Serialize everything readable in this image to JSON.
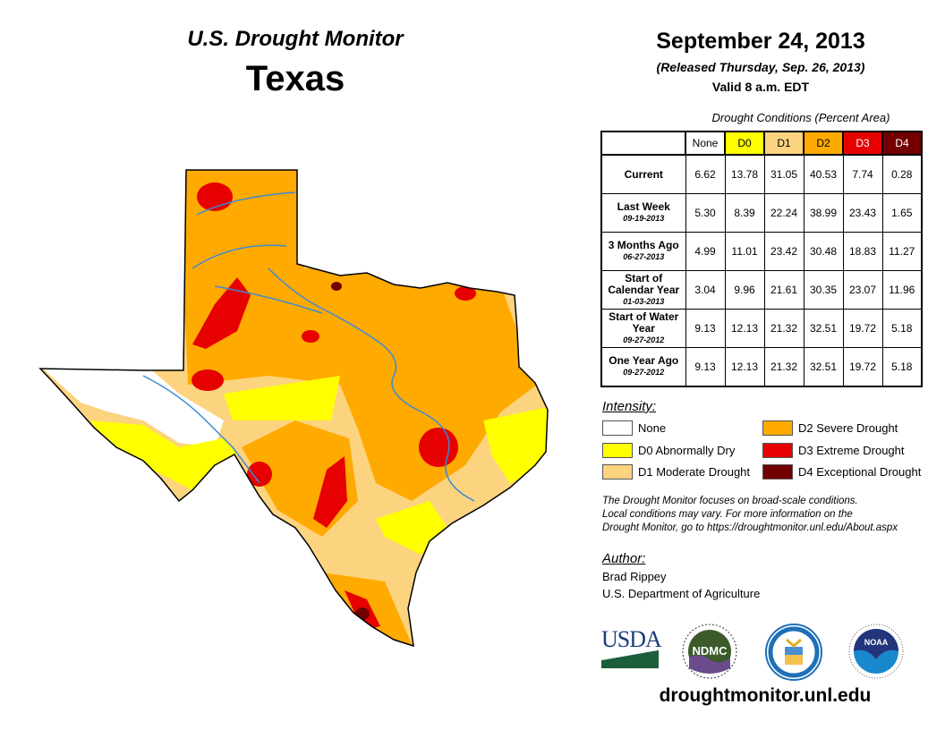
{
  "header": {
    "title": "U.S. Drought Monitor",
    "region": "Texas",
    "date": "September 24, 2013",
    "released": "(Released Thursday, Sep. 26, 2013)",
    "valid": "Valid 8 a.m. EDT"
  },
  "table": {
    "caption": "Drought Conditions (Percent Area)",
    "columns": [
      "None",
      "D0",
      "D1",
      "D2",
      "D3",
      "D4"
    ],
    "rows": [
      {
        "label": "Current",
        "sub": "",
        "values": [
          "6.62",
          "13.78",
          "31.05",
          "40.53",
          "7.74",
          "0.28"
        ]
      },
      {
        "label": "Last Week",
        "sub": "09-19-2013",
        "values": [
          "5.30",
          "8.39",
          "22.24",
          "38.99",
          "23.43",
          "1.65"
        ]
      },
      {
        "label": "3 Months Ago",
        "sub": "06-27-2013",
        "values": [
          "4.99",
          "11.01",
          "23.42",
          "30.48",
          "18.83",
          "11.27"
        ]
      },
      {
        "label": "Start of Calendar Year",
        "sub": "01-03-2013",
        "values": [
          "3.04",
          "9.96",
          "21.61",
          "30.35",
          "23.07",
          "11.96"
        ]
      },
      {
        "label": "Start of Water Year",
        "sub": "09-27-2012",
        "values": [
          "9.13",
          "12.13",
          "21.32",
          "32.51",
          "19.72",
          "5.18"
        ]
      },
      {
        "label": "One Year Ago",
        "sub": "09-27-2012",
        "values": [
          "9.13",
          "12.13",
          "21.32",
          "32.51",
          "19.72",
          "5.18"
        ]
      }
    ]
  },
  "legend": {
    "title": "Intensity:",
    "items": [
      {
        "label": "None",
        "color": "#ffffff"
      },
      {
        "label": "D0 Abnormally Dry",
        "color": "#ffff00"
      },
      {
        "label": "D1 Moderate Drought",
        "color": "#fcd37f"
      },
      {
        "label": "D2 Severe Drought",
        "color": "#ffaa00"
      },
      {
        "label": "D3 Extreme Drought",
        "color": "#e60000"
      },
      {
        "label": "D4 Exceptional Drought",
        "color": "#730000"
      }
    ]
  },
  "note": [
    "The Drought Monitor focuses on broad-scale conditions.",
    "Local conditions may vary. For more information on the",
    "Drought Monitor, go to https://droughtmonitor.unl.edu/About.aspx"
  ],
  "author": {
    "title": "Author:",
    "name": "Brad Rippey",
    "org": "U.S. Department of Agriculture"
  },
  "logos": {
    "usda": "USDA",
    "ndmc": "NDMC",
    "noaa": "NOAA"
  },
  "footer_url": "droughtmonitor.unl.edu"
}
